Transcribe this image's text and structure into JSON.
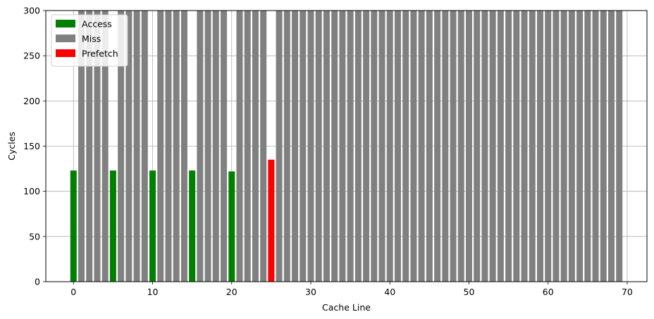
{
  "chart_data": {
    "type": "bar",
    "xlabel": "Cache Line",
    "ylabel": "Cycles",
    "xlim": [
      -3.5,
      72.5
    ],
    "ylim": [
      0,
      300
    ],
    "xticks": [
      0,
      10,
      20,
      30,
      40,
      50,
      60,
      70
    ],
    "yticks": [
      0,
      50,
      100,
      150,
      200,
      250,
      300
    ],
    "grid": true,
    "legend_position": "top-left",
    "series": [
      {
        "name": "Access",
        "color": "#008000",
        "x": [
          0,
          5,
          10,
          15,
          20
        ],
        "values": [
          123,
          123,
          123,
          123,
          122
        ]
      },
      {
        "name": "Miss",
        "color": "#808080",
        "x": [
          1,
          2,
          3,
          4,
          6,
          7,
          8,
          9,
          11,
          12,
          13,
          14,
          16,
          17,
          18,
          19,
          21,
          22,
          23,
          24,
          26,
          27,
          28,
          29,
          30,
          31,
          32,
          33,
          34,
          35,
          36,
          37,
          38,
          39,
          40,
          41,
          42,
          43,
          44,
          45,
          46,
          47,
          48,
          49,
          50,
          51,
          52,
          53,
          54,
          55,
          56,
          57,
          58,
          59,
          60,
          61,
          62,
          63,
          64,
          65,
          66,
          67,
          68,
          69
        ],
        "values": [
          300,
          300,
          300,
          300,
          300,
          300,
          300,
          300,
          300,
          300,
          300,
          300,
          300,
          300,
          300,
          300,
          300,
          300,
          300,
          300,
          300,
          300,
          300,
          300,
          300,
          300,
          300,
          300,
          300,
          300,
          300,
          300,
          300,
          300,
          300,
          300,
          300,
          300,
          300,
          300,
          300,
          300,
          300,
          300,
          300,
          300,
          300,
          300,
          300,
          300,
          300,
          300,
          300,
          300,
          300,
          300,
          300,
          300,
          300,
          300,
          300,
          300,
          300,
          300
        ]
      },
      {
        "name": "Prefetch",
        "color": "#ff0000",
        "x": [
          25
        ],
        "values": [
          135
        ]
      }
    ]
  }
}
